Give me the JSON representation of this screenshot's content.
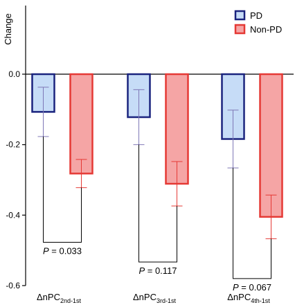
{
  "chart_data": {
    "type": "bar",
    "ylabel": "Change",
    "ylim": [
      -0.6,
      0.0
    ],
    "yticks": [
      0.0,
      -0.2,
      -0.4,
      -0.6
    ],
    "ytick_labels": [
      "0.0",
      "-0.2",
      "-0.4",
      "-0.6"
    ],
    "grid": false,
    "legend_position": "top-right",
    "categories": [
      {
        "main": "ΔnPC",
        "sub": "2nd-1st"
      },
      {
        "main": "ΔnPC",
        "sub": "3rd-1st"
      },
      {
        "main": "ΔnPC",
        "sub": "4th-1st"
      }
    ],
    "series": [
      {
        "name": "PD",
        "values": [
          -0.107,
          -0.122,
          -0.184
        ],
        "error": [
          0.07,
          0.078,
          0.082
        ],
        "fill": "#c6dcf7",
        "stroke": "#1a237e",
        "errcolor": "#7e77b6"
      },
      {
        "name": "Non-PD",
        "values": [
          -0.282,
          -0.311,
          -0.405
        ],
        "error": [
          0.04,
          0.063,
          0.062
        ],
        "fill": "#f5a5a5",
        "stroke": "#e53935",
        "errcolor": "#e53935"
      }
    ],
    "annotations": [
      {
        "text_p": "P",
        "text_value": " = 0.033",
        "y": -0.477
      },
      {
        "text_p": "P",
        "text_value": " = 0.117",
        "y": -0.533
      },
      {
        "text_p": "P",
        "text_value": " = 0.067",
        "y": -0.58
      }
    ]
  }
}
